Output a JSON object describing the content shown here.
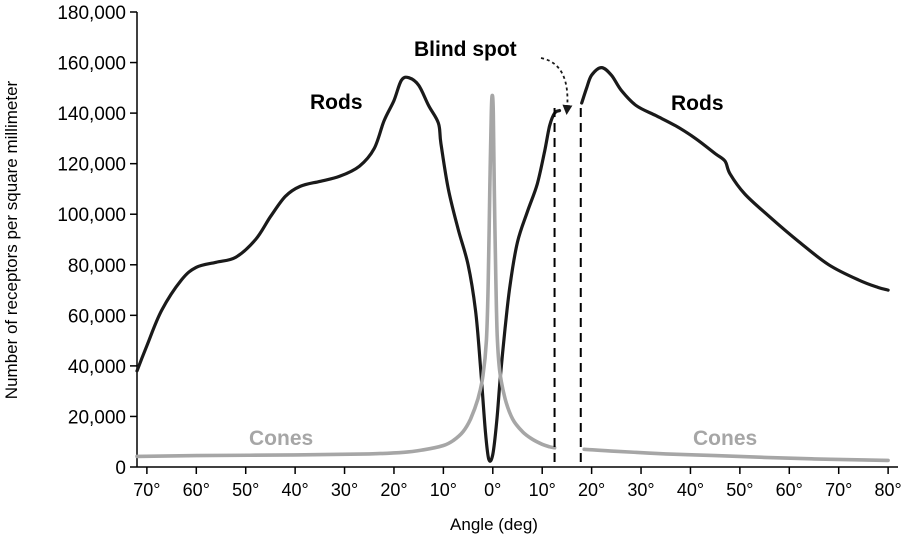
{
  "chart_data": {
    "type": "line",
    "xlabel": "Angle (deg)",
    "ylabel": "Number of receptors per square millimeter",
    "xlim": [
      -72,
      82
    ],
    "ylim": [
      0,
      180000
    ],
    "x_tick_values": [
      -70,
      -60,
      -50,
      -40,
      -30,
      -20,
      -10,
      0,
      10,
      20,
      30,
      40,
      50,
      60,
      70,
      80
    ],
    "x_tick_labels": [
      "70°",
      "60°",
      "50°",
      "40°",
      "30°",
      "20°",
      "10°",
      "0°",
      "10°",
      "20°",
      "30°",
      "40°",
      "50°",
      "60°",
      "70°",
      "80°"
    ],
    "y_tick_values": [
      0,
      20000,
      40000,
      60000,
      80000,
      100000,
      120000,
      140000,
      160000,
      180000
    ],
    "y_tick_labels": [
      "0",
      "20,000",
      "40,000",
      "60,000",
      "80,000",
      "100,000",
      "120,000",
      "140,000",
      "160,000",
      "180,000"
    ],
    "grid": false,
    "colors": {
      "rods": "#1a1a1a",
      "cones": "#a6a6a6",
      "text": "#000000"
    },
    "series": [
      {
        "name": "Rods",
        "color": "#1a1a1a",
        "segments": [
          [
            [
              -72,
              38000
            ],
            [
              -70,
              48000
            ],
            [
              -67,
              62000
            ],
            [
              -63,
              74000
            ],
            [
              -60,
              79000
            ],
            [
              -56,
              81000
            ],
            [
              -52,
              83000
            ],
            [
              -48,
              90000
            ],
            [
              -45,
              99000
            ],
            [
              -42,
              107000
            ],
            [
              -39,
              111000
            ],
            [
              -35,
              113000
            ],
            [
              -31,
              115000
            ],
            [
              -27,
              119000
            ],
            [
              -24,
              126000
            ],
            [
              -22,
              137000
            ],
            [
              -20,
              145000
            ],
            [
              -18.5,
              153000
            ],
            [
              -17,
              154000
            ],
            [
              -15,
              151000
            ],
            [
              -13,
              143000
            ],
            [
              -11,
              136000
            ],
            [
              -10.5,
              128000
            ],
            [
              -9,
              110000
            ],
            [
              -7,
              94000
            ],
            [
              -5,
              80000
            ],
            [
              -3.5,
              62000
            ],
            [
              -2.5,
              40000
            ],
            [
              -1.5,
              14000
            ],
            [
              -0.8,
              3000
            ],
            [
              0,
              5000
            ],
            [
              0.8,
              18000
            ],
            [
              1.5,
              35000
            ],
            [
              2.5,
              55000
            ],
            [
              3.5,
              72000
            ],
            [
              5,
              89000
            ],
            [
              7,
              101000
            ],
            [
              9,
              112000
            ],
            [
              10.5,
              125000
            ],
            [
              11.5,
              135000
            ],
            [
              12.5,
              140000
            ],
            [
              13.5,
              141000
            ]
          ],
          [
            [
              18,
              144000
            ],
            [
              19,
              150000
            ],
            [
              20,
              155000
            ],
            [
              22,
              158000
            ],
            [
              24,
              155000
            ],
            [
              26,
              149000
            ],
            [
              29,
              143000
            ],
            [
              33,
              139000
            ],
            [
              37,
              135000
            ],
            [
              41,
              130000
            ],
            [
              45,
              124000
            ],
            [
              47,
              121000
            ],
            [
              48,
              116000
            ],
            [
              51,
              108000
            ],
            [
              56,
              99000
            ],
            [
              62,
              89000
            ],
            [
              68,
              80000
            ],
            [
              74,
              74000
            ],
            [
              78,
              71000
            ],
            [
              80,
              70000
            ]
          ]
        ]
      },
      {
        "name": "Cones",
        "color": "#a6a6a6",
        "segments": [
          [
            [
              -72,
              4200
            ],
            [
              -60,
              4500
            ],
            [
              -40,
              4800
            ],
            [
              -25,
              5200
            ],
            [
              -18,
              5800
            ],
            [
              -14,
              6800
            ],
            [
              -10,
              8500
            ],
            [
              -8,
              10500
            ],
            [
              -6,
              14000
            ],
            [
              -4.5,
              19000
            ],
            [
              -3,
              27000
            ],
            [
              -2,
              36000
            ],
            [
              -1.3,
              50000
            ],
            [
              -0.9,
              75000
            ],
            [
              -0.6,
              110000
            ],
            [
              -0.3,
              140000
            ],
            [
              -0.1,
              147000
            ],
            [
              0.1,
              140000
            ],
            [
              0.3,
              110000
            ],
            [
              0.6,
              75000
            ],
            [
              0.9,
              52000
            ],
            [
              1.4,
              38000
            ],
            [
              2.5,
              27000
            ],
            [
              4,
              19000
            ],
            [
              6,
              14000
            ],
            [
              8,
              11000
            ],
            [
              10,
              9000
            ],
            [
              11.5,
              8000
            ],
            [
              12.5,
              7600
            ]
          ],
          [
            [
              18.5,
              7000
            ],
            [
              25,
              6200
            ],
            [
              35,
              5200
            ],
            [
              45,
              4500
            ],
            [
              55,
              3800
            ],
            [
              65,
              3200
            ],
            [
              75,
              2800
            ],
            [
              80,
              2600
            ]
          ]
        ]
      }
    ],
    "blind_spot": {
      "x_start": 12.5,
      "x_end": 17.8,
      "top": 142000
    },
    "annotations": {
      "rods_left": "Rods",
      "rods_right": "Rods",
      "cones_left": "Cones",
      "cones_right": "Cones",
      "blind_spot": "Blind spot"
    }
  }
}
